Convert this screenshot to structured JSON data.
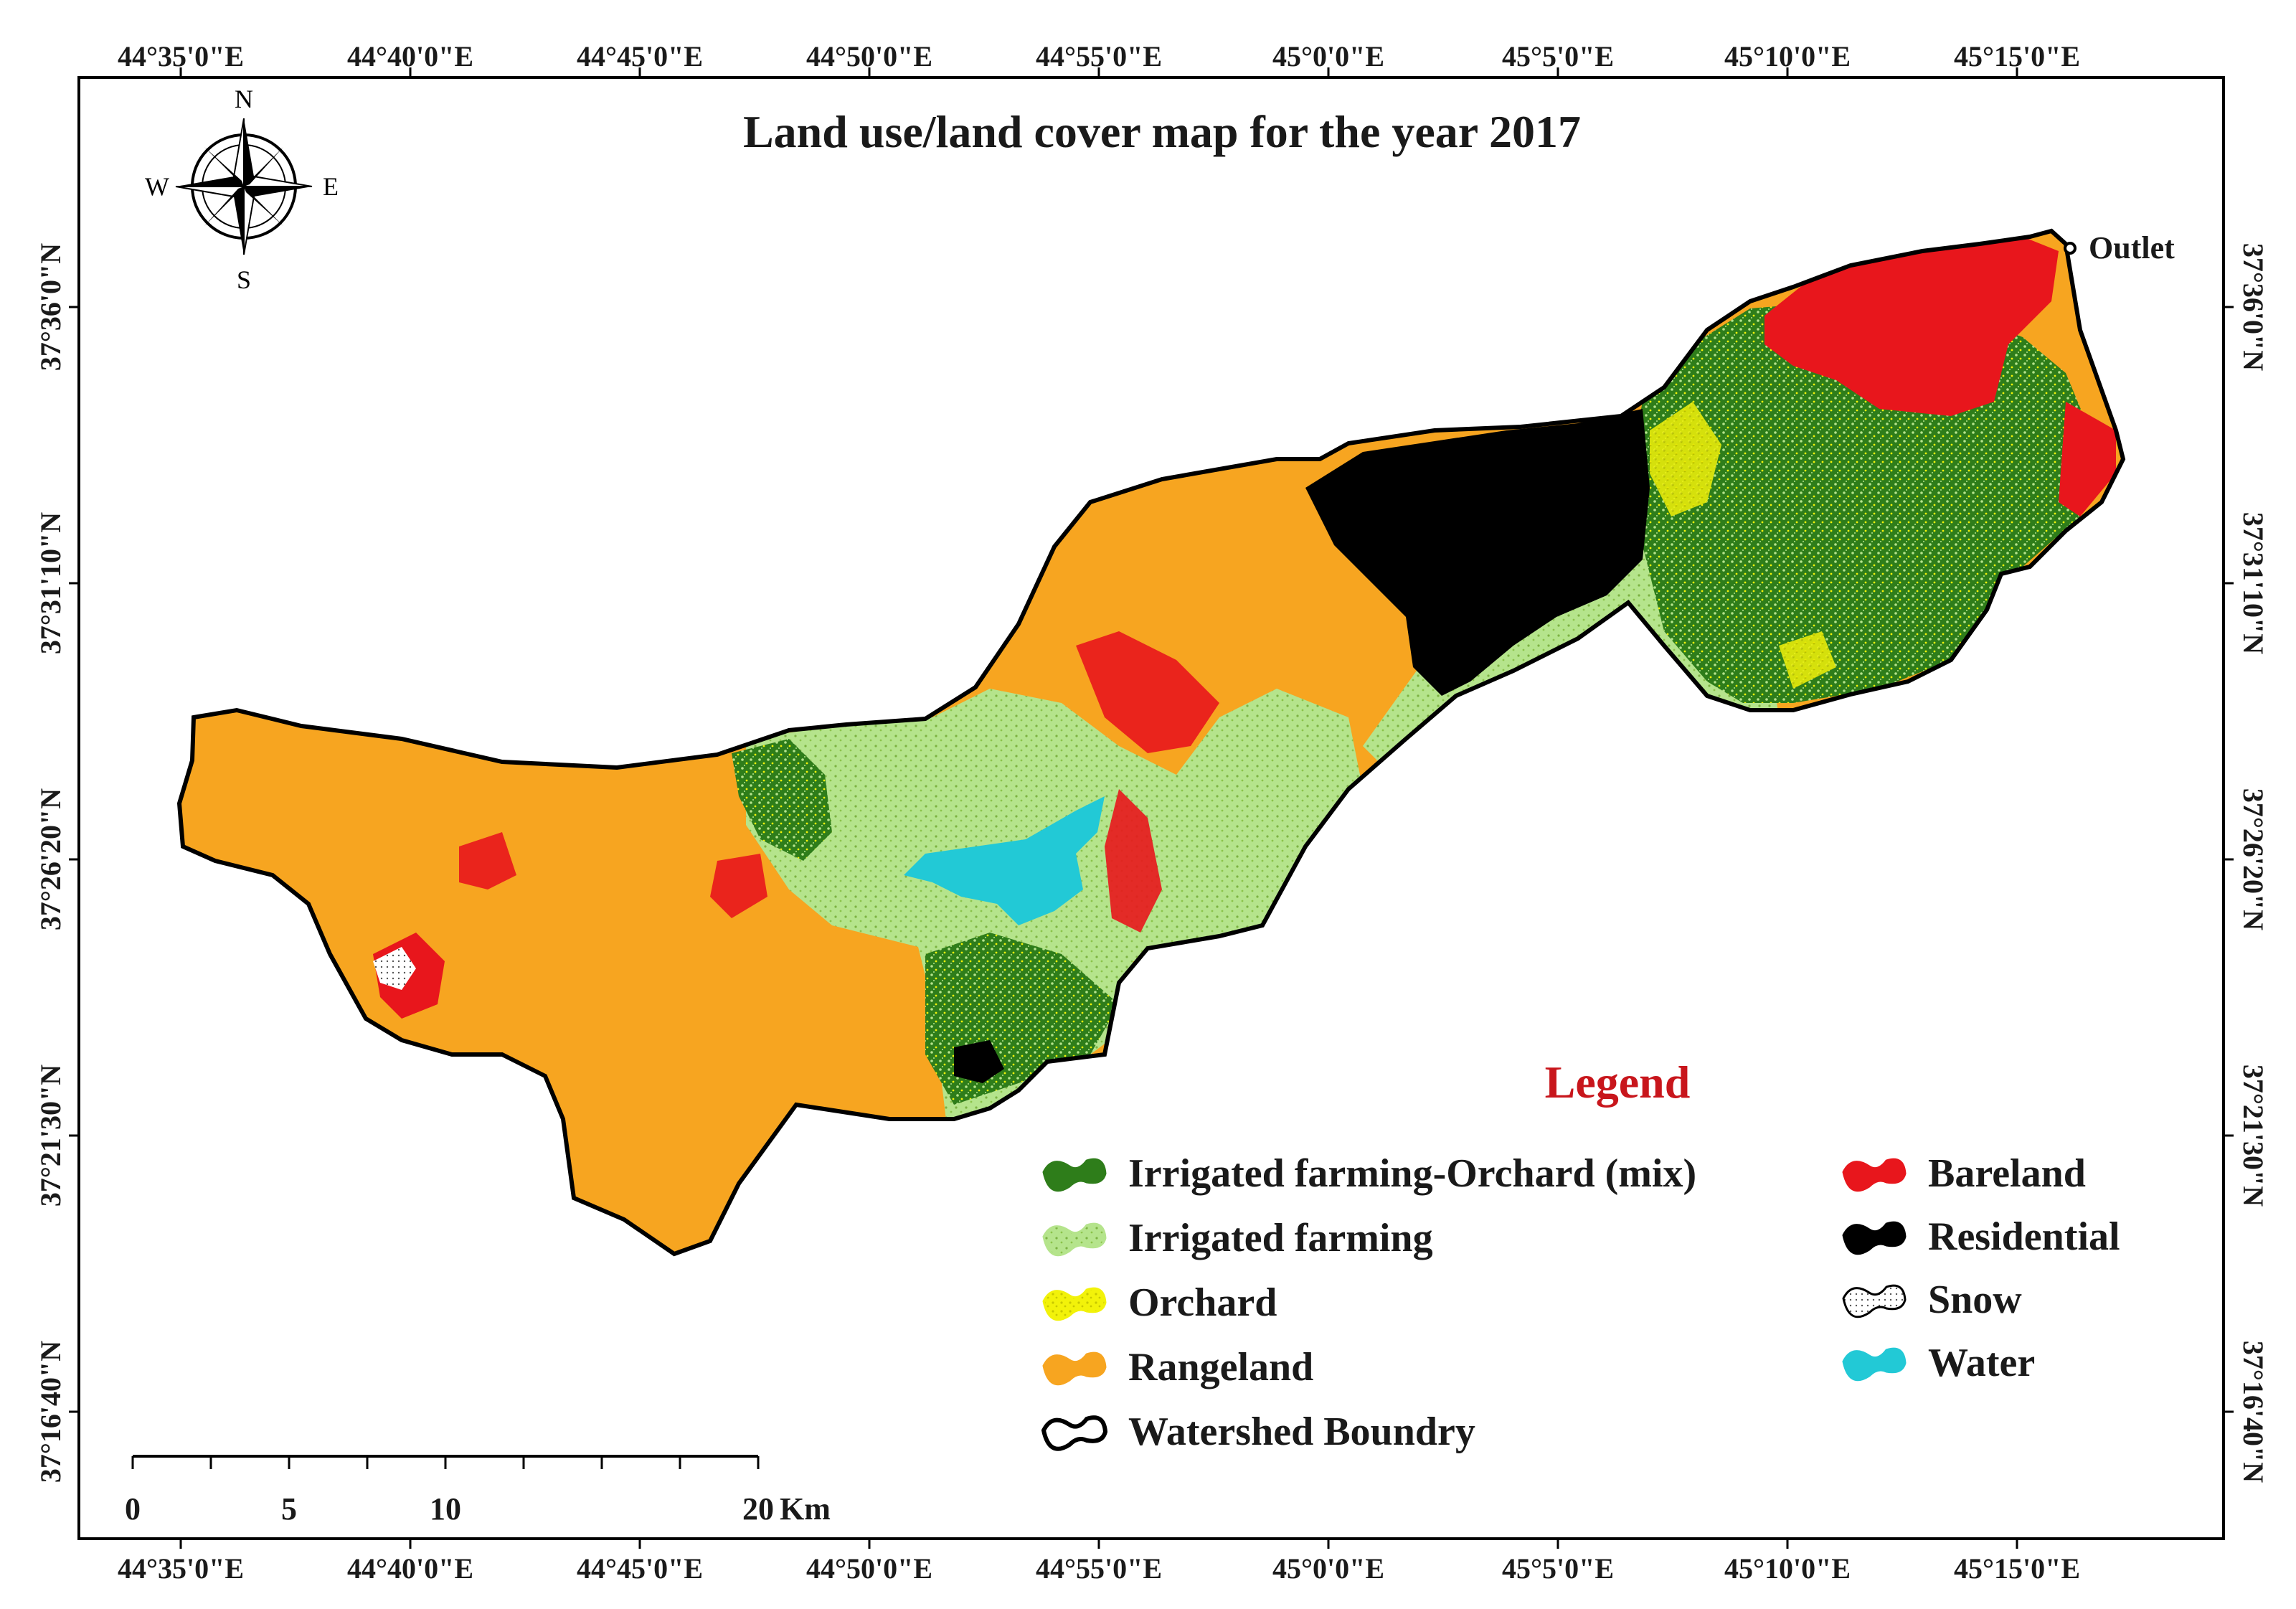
{
  "title": "Land use/land cover map for the year 2017",
  "outlet_label": "Outlet",
  "north_arrow": {
    "n": "N",
    "s": "S",
    "e": "E",
    "w": "W",
    "icon": "compass-rose-icon"
  },
  "lon_ticks": [
    "44°35'0\"E",
    "44°40'0\"E",
    "44°45'0\"E",
    "44°50'0\"E",
    "44°55'0\"E",
    "45°0'0\"E",
    "45°5'0\"E",
    "45°10'0\"E",
    "45°15'0\"E"
  ],
  "lat_ticks": [
    "37°36'0\"N",
    "37°31'10\"N",
    "37°26'20\"N",
    "37°21'30\"N",
    "37°16'40\"N"
  ],
  "legend": {
    "heading": "Legend",
    "items_left": [
      {
        "label": "Irrigated farming-Orchard (mix)",
        "color": "#2e7d1a",
        "pattern": "solid"
      },
      {
        "label": "Irrigated farming",
        "color": "#b5e48c",
        "pattern": "speckle"
      },
      {
        "label": "Orchard",
        "color": "#f2f20a",
        "pattern": "speckle"
      },
      {
        "label": "Rangeland",
        "color": "#f7a520",
        "pattern": "solid"
      },
      {
        "label": "Watershed Boundry",
        "color": "#ffffff",
        "pattern": "outline"
      }
    ],
    "items_right": [
      {
        "label": "Bareland",
        "color": "#e8161c",
        "pattern": "solid"
      },
      {
        "label": "Residential",
        "color": "#000000",
        "pattern": "solid"
      },
      {
        "label": "Snow",
        "color": "#ffffff",
        "pattern": "dots"
      },
      {
        "label": "Water",
        "color": "#22c9d6",
        "pattern": "solid"
      }
    ]
  },
  "scale_bar": {
    "labels": [
      "0",
      "5",
      "10",
      "20"
    ],
    "unit": "Km"
  }
}
